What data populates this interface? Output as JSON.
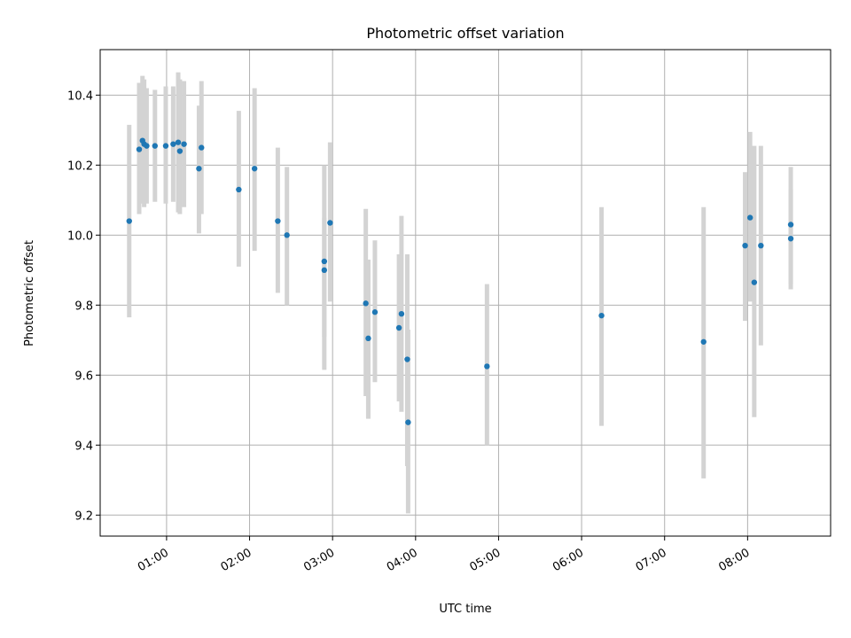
{
  "chart_data": {
    "type": "scatter",
    "title": "Photometric offset variation",
    "xlabel": "UTC time",
    "ylabel": "Photometric offset",
    "x_unit": "hours UTC",
    "xlim": [
      0.2,
      9.0
    ],
    "ylim": [
      9.14,
      10.53
    ],
    "x_ticks": [
      {
        "value": 1,
        "label": "01:00"
      },
      {
        "value": 2,
        "label": "02:00"
      },
      {
        "value": 3,
        "label": "03:00"
      },
      {
        "value": 4,
        "label": "04:00"
      },
      {
        "value": 5,
        "label": "05:00"
      },
      {
        "value": 6,
        "label": "06:00"
      },
      {
        "value": 7,
        "label": "07:00"
      },
      {
        "value": 8,
        "label": "08:00"
      }
    ],
    "y_ticks": [
      {
        "value": 9.2,
        "label": "9.2"
      },
      {
        "value": 9.4,
        "label": "9.4"
      },
      {
        "value": 9.6,
        "label": "9.6"
      },
      {
        "value": 9.8,
        "label": "9.8"
      },
      {
        "value": 10.0,
        "label": "10.0"
      },
      {
        "value": 10.2,
        "label": "10.2"
      },
      {
        "value": 10.4,
        "label": "10.4"
      }
    ],
    "grid": true,
    "colors": {
      "point": "#1f77b4",
      "errorbar": "#d3d3d3",
      "grid": "#b0b0b0"
    },
    "points": [
      {
        "x": 0.55,
        "y": 10.04,
        "lo": 9.765,
        "hi": 10.315
      },
      {
        "x": 0.67,
        "y": 10.245,
        "lo": 10.06,
        "hi": 10.435
      },
      {
        "x": 0.71,
        "y": 10.27,
        "lo": 10.09,
        "hi": 10.455
      },
      {
        "x": 0.73,
        "y": 10.26,
        "lo": 10.08,
        "hi": 10.445
      },
      {
        "x": 0.76,
        "y": 10.255,
        "lo": 10.09,
        "hi": 10.42
      },
      {
        "x": 0.86,
        "y": 10.255,
        "lo": 10.095,
        "hi": 10.415
      },
      {
        "x": 0.99,
        "y": 10.255,
        "lo": 10.09,
        "hi": 10.425
      },
      {
        "x": 1.08,
        "y": 10.26,
        "lo": 10.095,
        "hi": 10.425
      },
      {
        "x": 1.14,
        "y": 10.265,
        "lo": 10.065,
        "hi": 10.465
      },
      {
        "x": 1.16,
        "y": 10.24,
        "lo": 10.06,
        "hi": 10.445
      },
      {
        "x": 1.21,
        "y": 10.26,
        "lo": 10.08,
        "hi": 10.44
      },
      {
        "x": 1.39,
        "y": 10.19,
        "lo": 10.005,
        "hi": 10.37
      },
      {
        "x": 1.42,
        "y": 10.25,
        "lo": 10.06,
        "hi": 10.44
      },
      {
        "x": 1.87,
        "y": 10.13,
        "lo": 9.91,
        "hi": 10.355
      },
      {
        "x": 2.06,
        "y": 10.19,
        "lo": 9.955,
        "hi": 10.42
      },
      {
        "x": 2.34,
        "y": 10.04,
        "lo": 9.835,
        "hi": 10.25
      },
      {
        "x": 2.45,
        "y": 10.0,
        "lo": 9.8,
        "hi": 10.195
      },
      {
        "x": 2.9,
        "y": 9.925,
        "lo": 9.71,
        "hi": 10.2
      },
      {
        "x": 2.9,
        "y": 9.9,
        "lo": 9.615,
        "hi": 10.05
      },
      {
        "x": 2.97,
        "y": 10.035,
        "lo": 9.81,
        "hi": 10.265
      },
      {
        "x": 3.4,
        "y": 9.805,
        "lo": 9.54,
        "hi": 10.075
      },
      {
        "x": 3.43,
        "y": 9.705,
        "lo": 9.475,
        "hi": 9.93
      },
      {
        "x": 3.51,
        "y": 9.78,
        "lo": 9.58,
        "hi": 9.985
      },
      {
        "x": 3.8,
        "y": 9.735,
        "lo": 9.525,
        "hi": 9.945
      },
      {
        "x": 3.83,
        "y": 9.775,
        "lo": 9.495,
        "hi": 10.055
      },
      {
        "x": 3.9,
        "y": 9.645,
        "lo": 9.34,
        "hi": 9.945
      },
      {
        "x": 3.91,
        "y": 9.465,
        "lo": 9.205,
        "hi": 9.73
      },
      {
        "x": 4.86,
        "y": 9.625,
        "lo": 9.4,
        "hi": 9.86
      },
      {
        "x": 6.24,
        "y": 9.77,
        "lo": 9.455,
        "hi": 10.08
      },
      {
        "x": 7.47,
        "y": 9.695,
        "lo": 9.305,
        "hi": 10.08
      },
      {
        "x": 7.97,
        "y": 9.97,
        "lo": 9.755,
        "hi": 10.18
      },
      {
        "x": 8.03,
        "y": 10.05,
        "lo": 9.81,
        "hi": 10.295
      },
      {
        "x": 8.08,
        "y": 9.865,
        "lo": 9.48,
        "hi": 10.255
      },
      {
        "x": 8.16,
        "y": 9.97,
        "lo": 9.685,
        "hi": 10.255
      },
      {
        "x": 8.52,
        "y": 10.03,
        "lo": 9.86,
        "hi": 10.195
      },
      {
        "x": 8.52,
        "y": 9.99,
        "lo": 9.845,
        "hi": 10.13
      }
    ]
  }
}
